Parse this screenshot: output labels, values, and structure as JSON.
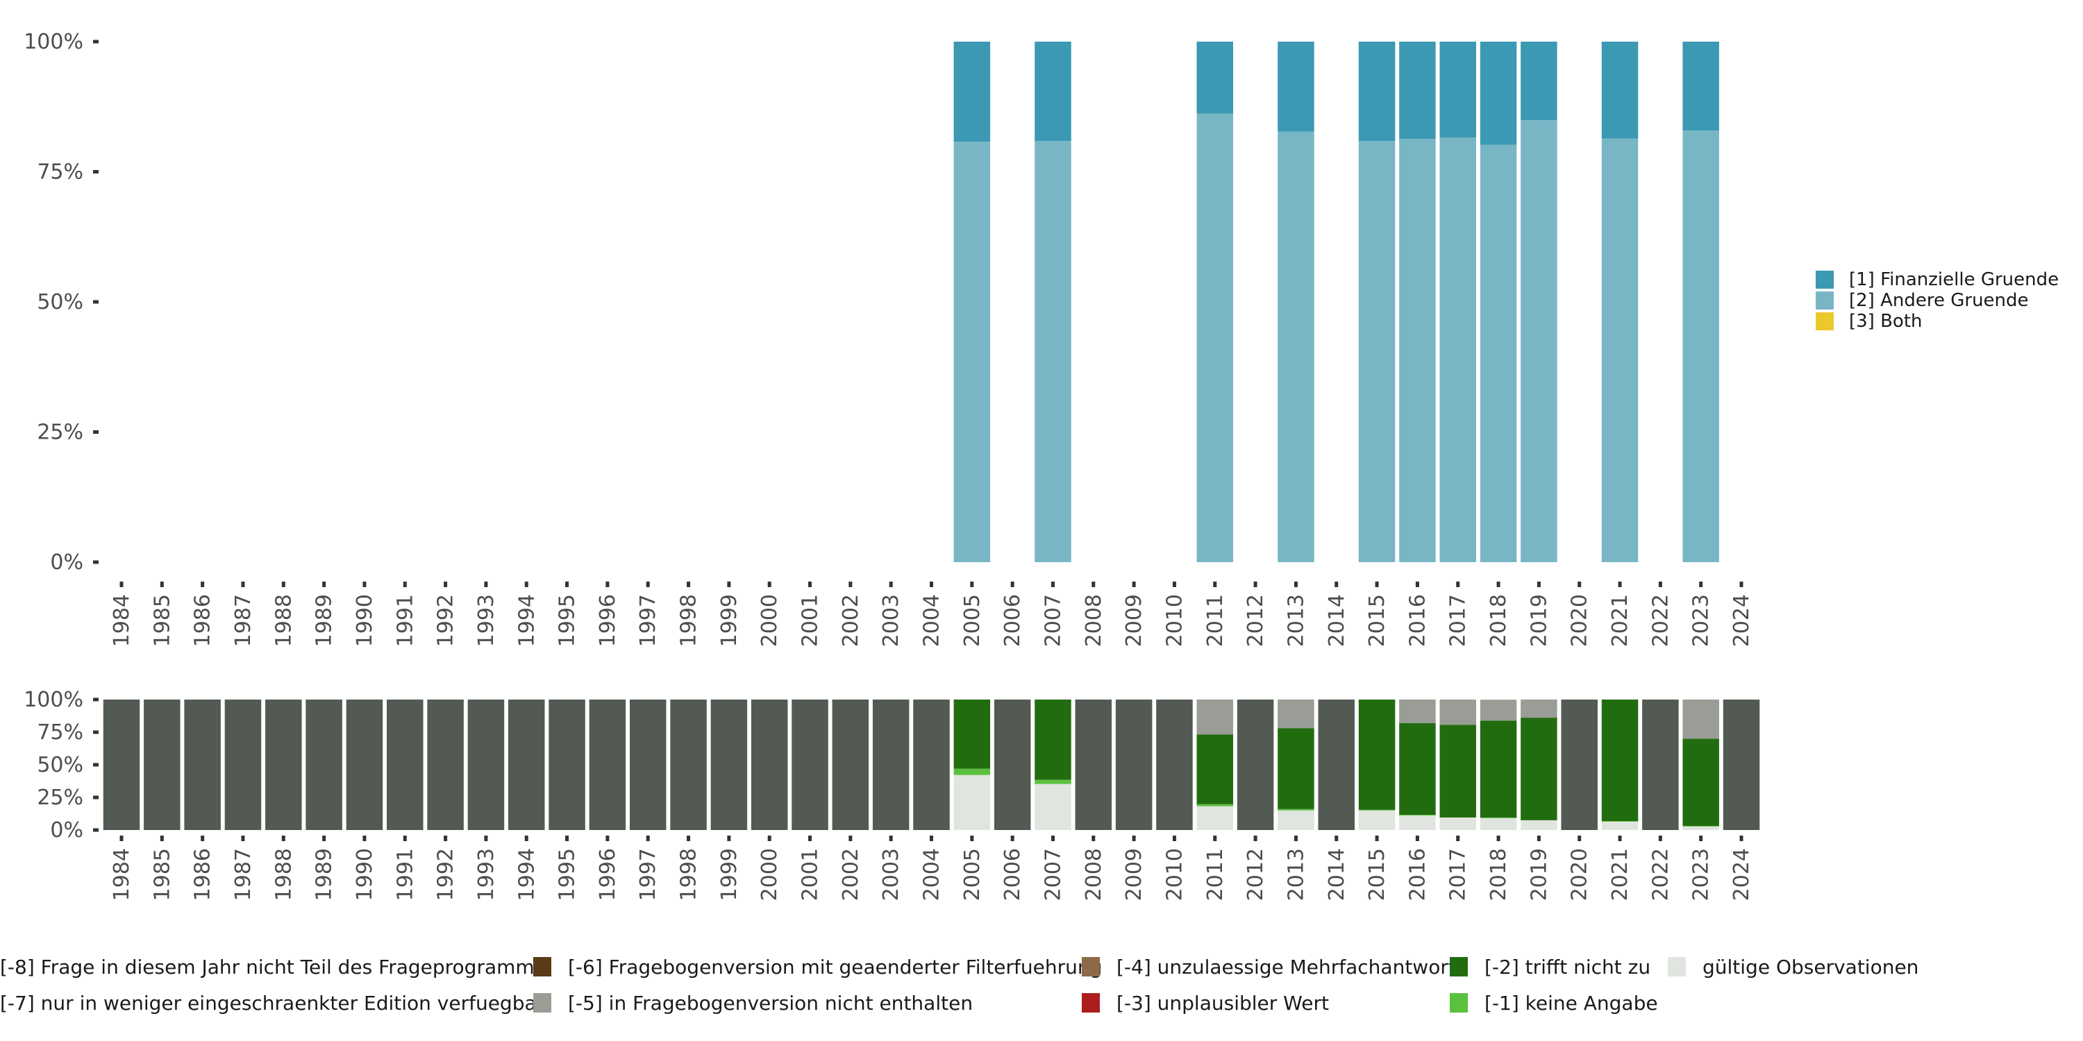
{
  "chart_data": [
    {
      "type": "bar",
      "stacked": true,
      "title": "",
      "xlabel": "",
      "ylabel": "",
      "ylim": [
        0,
        100
      ],
      "yticks": [
        "0%",
        "25%",
        "50%",
        "75%",
        "100%"
      ],
      "categories": [
        "1984",
        "1985",
        "1986",
        "1987",
        "1988",
        "1989",
        "1990",
        "1991",
        "1992",
        "1993",
        "1994",
        "1995",
        "1996",
        "1997",
        "1998",
        "1999",
        "2000",
        "2001",
        "2002",
        "2003",
        "2004",
        "2005",
        "2006",
        "2007",
        "2008",
        "2009",
        "2010",
        "2011",
        "2012",
        "2013",
        "2014",
        "2015",
        "2016",
        "2017",
        "2018",
        "2019",
        "2020",
        "2021",
        "2022",
        "2023",
        "2024"
      ],
      "legend_position": "right",
      "series": [
        {
          "name": "[2] Andere Gruende",
          "color": "#79b6c5",
          "values": {
            "2005": 80.8,
            "2007": 80.9,
            "2011": 86.2,
            "2013": 82.7,
            "2015": 80.9,
            "2016": 81.3,
            "2017": 81.6,
            "2018": 80.2,
            "2019": 84.9,
            "2021": 81.4,
            "2023": 82.9
          }
        },
        {
          "name": "[1] Finanzielle Gruende",
          "color": "#3b99b3",
          "values": {
            "2005": 19.2,
            "2007": 19.1,
            "2011": 13.8,
            "2013": 17.3,
            "2015": 19.1,
            "2016": 18.7,
            "2017": 18.4,
            "2018": 19.8,
            "2019": 15.1,
            "2021": 18.6,
            "2023": 17.1
          }
        },
        {
          "name": "[3] Both",
          "color": "#ecc92a",
          "values": {}
        }
      ],
      "legend_order": [
        "[1] Finanzielle Gruende",
        "[2] Andere Gruende",
        "[3] Both"
      ]
    },
    {
      "type": "bar",
      "stacked": true,
      "ylim": [
        0,
        100
      ],
      "yticks": [
        "0%",
        "25%",
        "50%",
        "75%",
        "100%"
      ],
      "categories": [
        "1984",
        "1985",
        "1986",
        "1987",
        "1988",
        "1989",
        "1990",
        "1991",
        "1992",
        "1993",
        "1994",
        "1995",
        "1996",
        "1997",
        "1998",
        "1999",
        "2000",
        "2001",
        "2002",
        "2003",
        "2004",
        "2005",
        "2006",
        "2007",
        "2008",
        "2009",
        "2010",
        "2011",
        "2012",
        "2013",
        "2014",
        "2015",
        "2016",
        "2017",
        "2018",
        "2019",
        "2020",
        "2021",
        "2022",
        "2023",
        "2024"
      ],
      "legend_position": "bottom",
      "series": [
        {
          "name": "gültige Observationen",
          "color": "#e1e5e0",
          "values": {
            "2005": 42.2,
            "2007": 35.3,
            "2011": 18.2,
            "2013": 15.0,
            "2015": 15.0,
            "2016": 11.2,
            "2017": 9.6,
            "2018": 9.1,
            "2019": 7.5,
            "2021": 6.4,
            "2023": 2.7
          }
        },
        {
          "name": "[-1] keine Angabe",
          "color": "#5ac13f",
          "values": {
            "2005": 4.8,
            "2007": 3.2,
            "2011": 1.6,
            "2013": 1.1,
            "2015": 0.5,
            "2016": 0.5,
            "2018": 0.5,
            "2021": 0.5,
            "2023": 0.5
          }
        },
        {
          "name": "[-2] trifft nicht zu",
          "color": "#226c10",
          "values": {
            "2005": 53.0,
            "2007": 61.5,
            "2011": 53.5,
            "2013": 62.0,
            "2015": 84.5,
            "2016": 70.2,
            "2017": 71.1,
            "2018": 74.3,
            "2019": 78.6,
            "2021": 93.1,
            "2023": 66.8
          }
        },
        {
          "name": "[-3] unplausibler Wert",
          "color": "#ad1d1d",
          "values": {}
        },
        {
          "name": "[-4] unzulaessige Mehrfachantwort",
          "color": "#8c6a48",
          "values": {}
        },
        {
          "name": "[-5] in Fragebogenversion nicht enthalten",
          "color": "#999d96",
          "values": {
            "2011": 26.7,
            "2013": 21.9,
            "2016": 18.1,
            "2017": 19.3,
            "2018": 16.0,
            "2019": 13.9,
            "2023": 30.0
          }
        },
        {
          "name": "[-6] Fragebogenversion mit geaenderter Filterfuehrung",
          "color": "#5b3a17",
          "values": {}
        },
        {
          "name": "[-7] nur in weniger eingeschraenkter Edition verfuegbar",
          "color": "#c9ccc7",
          "values": {}
        },
        {
          "name": "[-8] Frage in diesem Jahr nicht Teil des Frageprogramms",
          "color": "#535a53",
          "values": {
            "1984": 100,
            "1985": 100,
            "1986": 100,
            "1987": 100,
            "1988": 100,
            "1989": 100,
            "1990": 100,
            "1991": 100,
            "1992": 100,
            "1993": 100,
            "1994": 100,
            "1995": 100,
            "1996": 100,
            "1997": 100,
            "1998": 100,
            "1999": 100,
            "2000": 100,
            "2001": 100,
            "2002": 100,
            "2003": 100,
            "2004": 100,
            "2006": 100,
            "2008": 100,
            "2009": 100,
            "2010": 100,
            "2012": 100,
            "2014": 100,
            "2020": 100,
            "2022": 100,
            "2024": 100
          }
        }
      ]
    }
  ],
  "bottom_legend": [
    {
      "label": "[-8] Frage in diesem Jahr nicht Teil des Frageprogramms",
      "color": "#535a53"
    },
    {
      "label": "[-6] Fragebogenversion mit geaenderter Filterfuehrung",
      "color": "#5b3a17"
    },
    {
      "label": "[-4] unzulaessige Mehrfachantwort",
      "color": "#8c6a48"
    },
    {
      "label": "[-2] trifft nicht zu",
      "color": "#226c10"
    },
    {
      "label": "gültige Observationen",
      "color": "#e1e5e0"
    },
    {
      "label": "[-7] nur in weniger eingeschraenkter Edition verfuegbar",
      "color": "#c9ccc7"
    },
    {
      "label": "[-5] in Fragebogenversion nicht enthalten",
      "color": "#999d96"
    },
    {
      "label": "[-3] unplausibler Wert",
      "color": "#ad1d1d"
    },
    {
      "label": "[-1] keine Angabe",
      "color": "#5ac13f"
    }
  ],
  "top_legend": [
    {
      "label": "[1] Finanzielle Gruende",
      "color": "#3b99b3"
    },
    {
      "label": "[2] Andere Gruende",
      "color": "#79b6c5"
    },
    {
      "label": "[3] Both",
      "color": "#ecc92a"
    }
  ]
}
